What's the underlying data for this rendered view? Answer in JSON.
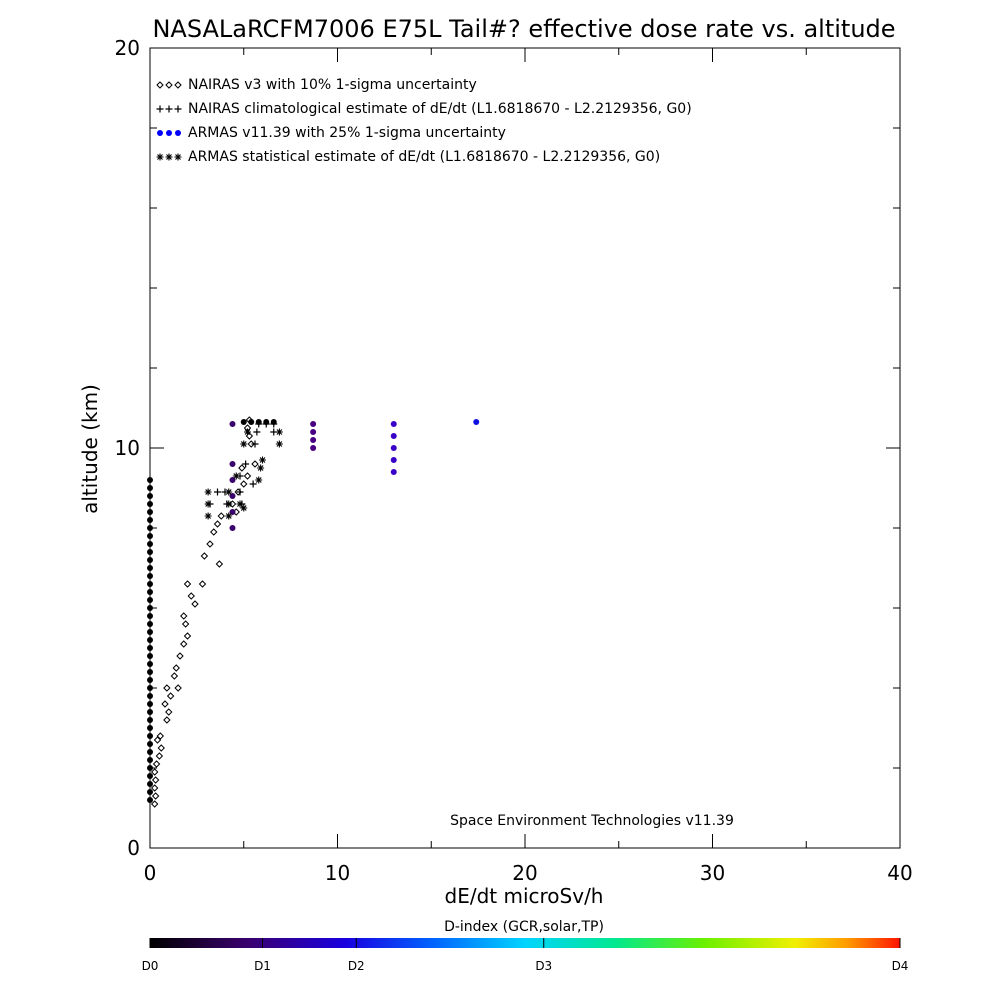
{
  "chart_data": {
    "type": "scatter",
    "title": "NASALaRCFM7006  E75L Tail#? effective dose rate vs. altitude",
    "xlabel": "dE/dt microSv/h",
    "ylabel": "altitude (km)",
    "xlim": [
      0,
      40
    ],
    "ylim": [
      0,
      20
    ],
    "x_ticks": [
      "0",
      "10",
      "20",
      "30",
      "40"
    ],
    "y_ticks": [
      "0",
      "10",
      "20"
    ],
    "legend_position": "top-left",
    "legend": [
      "NAIRAS v3 with 10% 1-sigma uncertainty",
      "NAIRAS climatological estimate of dE/dt (L1.6818670 - L2.2129356, G0)",
      "ARMAS v11.39 with 25% 1-sigma uncertainty",
      "ARMAS statistical estimate of dE/dt (L1.6818670 - L2.2129356, G0)"
    ],
    "annotation": "Space Environment Technologies v11.39",
    "colorbar": {
      "label": "D-index (GCR,solar,TP)",
      "tick_labels": [
        "D0",
        "D1",
        "D2",
        "D3",
        "D4"
      ],
      "tick_values": [
        0,
        1,
        2,
        3,
        4
      ],
      "tick_positions": [
        0,
        1.2,
        2.2,
        4.2,
        8.0
      ]
    },
    "series": [
      {
        "name": "NAIRAS v3 with 10% 1-sigma uncertainty",
        "marker": "diamond",
        "color": "#000000",
        "points": [
          [
            0.25,
            1.1
          ],
          [
            0.3,
            1.3
          ],
          [
            0.25,
            1.5
          ],
          [
            0.3,
            1.7
          ],
          [
            0.25,
            1.9
          ],
          [
            0.35,
            2.1
          ],
          [
            0.5,
            2.3
          ],
          [
            0.6,
            2.5
          ],
          [
            0.4,
            2.7
          ],
          [
            0.55,
            2.8
          ],
          [
            0.9,
            3.2
          ],
          [
            1.0,
            3.4
          ],
          [
            0.8,
            3.6
          ],
          [
            1.1,
            3.8
          ],
          [
            0.9,
            4.0
          ],
          [
            1.5,
            4.0
          ],
          [
            1.3,
            4.3
          ],
          [
            1.4,
            4.5
          ],
          [
            1.6,
            4.8
          ],
          [
            1.8,
            5.1
          ],
          [
            2.0,
            5.3
          ],
          [
            1.9,
            5.6
          ],
          [
            1.8,
            5.8
          ],
          [
            2.4,
            6.1
          ],
          [
            2.2,
            6.3
          ],
          [
            2.0,
            6.6
          ],
          [
            2.8,
            6.6
          ],
          [
            3.7,
            7.1
          ],
          [
            2.9,
            7.3
          ],
          [
            3.2,
            7.6
          ],
          [
            3.4,
            7.9
          ],
          [
            3.6,
            8.1
          ],
          [
            3.8,
            8.3
          ],
          [
            4.6,
            8.4
          ],
          [
            4.4,
            8.6
          ],
          [
            4.7,
            8.9
          ],
          [
            5.0,
            9.1
          ],
          [
            5.2,
            9.3
          ],
          [
            4.9,
            9.5
          ],
          [
            5.6,
            9.6
          ],
          [
            5.4,
            10.1
          ],
          [
            5.3,
            10.3
          ],
          [
            5.2,
            10.5
          ],
          [
            5.3,
            10.7
          ]
        ]
      },
      {
        "name": "NAIRAS climatological estimate of dE/dt (L1.6818670 - L2.2129356, G0)",
        "marker": "plus",
        "color": "#000000",
        "points": [
          [
            3.2,
            8.6
          ],
          [
            3.6,
            8.9
          ],
          [
            4.0,
            8.9
          ],
          [
            4.1,
            8.6
          ],
          [
            4.9,
            8.6
          ],
          [
            4.8,
            8.9
          ],
          [
            5.5,
            9.1
          ],
          [
            4.8,
            9.3
          ],
          [
            5.1,
            9.6
          ],
          [
            5.6,
            10.1
          ],
          [
            5.7,
            10.4
          ],
          [
            5.8,
            10.6
          ],
          [
            6.2,
            10.6
          ],
          [
            6.6,
            10.6
          ],
          [
            6.6,
            10.4
          ]
        ]
      },
      {
        "name": "ARMAS v11.39 with 25% 1-sigma uncertainty",
        "marker": "dot",
        "color": "#0000ff",
        "points": [
          [
            0,
            9.2
          ],
          [
            0,
            9.0
          ],
          [
            0,
            8.8
          ],
          [
            0,
            8.6
          ],
          [
            0,
            8.4
          ],
          [
            0,
            8.2
          ],
          [
            0,
            8.0
          ],
          [
            0,
            7.8
          ],
          [
            0,
            7.6
          ],
          [
            0,
            7.4
          ],
          [
            0,
            7.2
          ],
          [
            0,
            7.0
          ],
          [
            0,
            6.8
          ],
          [
            0,
            6.6
          ],
          [
            0,
            6.4
          ],
          [
            0,
            6.2
          ],
          [
            0,
            6.0
          ],
          [
            0,
            5.8
          ],
          [
            0,
            5.6
          ],
          [
            0,
            5.4
          ],
          [
            0,
            5.2
          ],
          [
            0,
            5.0
          ],
          [
            0,
            4.8
          ],
          [
            0,
            4.6
          ],
          [
            0,
            4.4
          ],
          [
            0,
            4.2
          ],
          [
            0,
            4.0
          ],
          [
            0,
            3.8
          ],
          [
            0,
            3.6
          ],
          [
            0,
            3.4
          ],
          [
            0,
            3.2
          ],
          [
            0,
            3.0
          ],
          [
            0,
            2.8
          ],
          [
            0,
            2.6
          ],
          [
            0,
            2.4
          ],
          [
            0,
            2.2
          ],
          [
            0,
            2.0
          ],
          [
            0,
            1.8
          ],
          [
            0,
            1.6
          ],
          [
            0,
            1.4
          ],
          [
            0,
            1.2
          ],
          [
            4.4,
            8.0
          ],
          [
            4.4,
            8.4
          ],
          [
            4.4,
            8.8
          ],
          [
            4.4,
            9.2
          ],
          [
            4.4,
            9.6
          ],
          [
            4.4,
            10.6
          ],
          [
            8.7,
            10.0
          ],
          [
            8.7,
            10.2
          ],
          [
            8.7,
            10.4
          ],
          [
            8.7,
            10.6
          ],
          [
            13.0,
            9.4
          ],
          [
            13.0,
            9.7
          ],
          [
            13.0,
            10.0
          ],
          [
            13.0,
            10.3
          ],
          [
            13.0,
            10.6
          ],
          [
            17.4,
            10.65
          ],
          [
            5.0,
            10.65
          ],
          [
            5.4,
            10.65
          ],
          [
            5.8,
            10.65
          ],
          [
            6.2,
            10.65
          ],
          [
            6.6,
            10.65
          ]
        ]
      },
      {
        "name": "ARMAS statistical estimate of dE/dt (L1.6818670 - L2.2129356, G0)",
        "marker": "asterisk",
        "color": "#000000",
        "points": [
          [
            3.1,
            8.3
          ],
          [
            3.1,
            8.6
          ],
          [
            3.1,
            8.9
          ],
          [
            4.2,
            8.3
          ],
          [
            4.2,
            8.6
          ],
          [
            4.2,
            8.9
          ],
          [
            4.8,
            8.6
          ],
          [
            5.0,
            8.5
          ],
          [
            5.8,
            9.2
          ],
          [
            5.9,
            9.5
          ],
          [
            6.0,
            9.7
          ],
          [
            6.9,
            10.1
          ],
          [
            6.9,
            10.4
          ],
          [
            5.0,
            10.1
          ],
          [
            5.2,
            10.4
          ],
          [
            4.6,
            9.3
          ]
        ]
      }
    ],
    "marker_colors": {
      "ARMAS v11.39 with 25% 1-sigma uncertainty": [
        "#000000",
        "#000000",
        "#000000",
        "#000000",
        "#000000",
        "#000000",
        "#000000",
        "#000000",
        "#000000",
        "#000000",
        "#000000",
        "#000000",
        "#000000",
        "#000000",
        "#000000",
        "#000000",
        "#000000",
        "#000000",
        "#000000",
        "#000000",
        "#000000",
        "#000000",
        "#000000",
        "#000000",
        "#000000",
        "#000000",
        "#000000",
        "#000000",
        "#000000",
        "#000000",
        "#000000",
        "#000000",
        "#000000",
        "#000000",
        "#000000",
        "#000000",
        "#000000",
        "#000000",
        "#000000",
        "#000000",
        "#000000",
        "#3a006e",
        "#3a006e",
        "#3a006e",
        "#3a006e",
        "#3a006e",
        "#3a006e",
        "#4a0080",
        "#4a0080",
        "#4a0080",
        "#4a0080",
        "#3a00c8",
        "#3a00c8",
        "#3a00c8",
        "#3a00c8",
        "#3a00c8",
        "#1010e0",
        "#000000",
        "#000000",
        "#000000",
        "#000000",
        "#000000"
      ]
    }
  }
}
